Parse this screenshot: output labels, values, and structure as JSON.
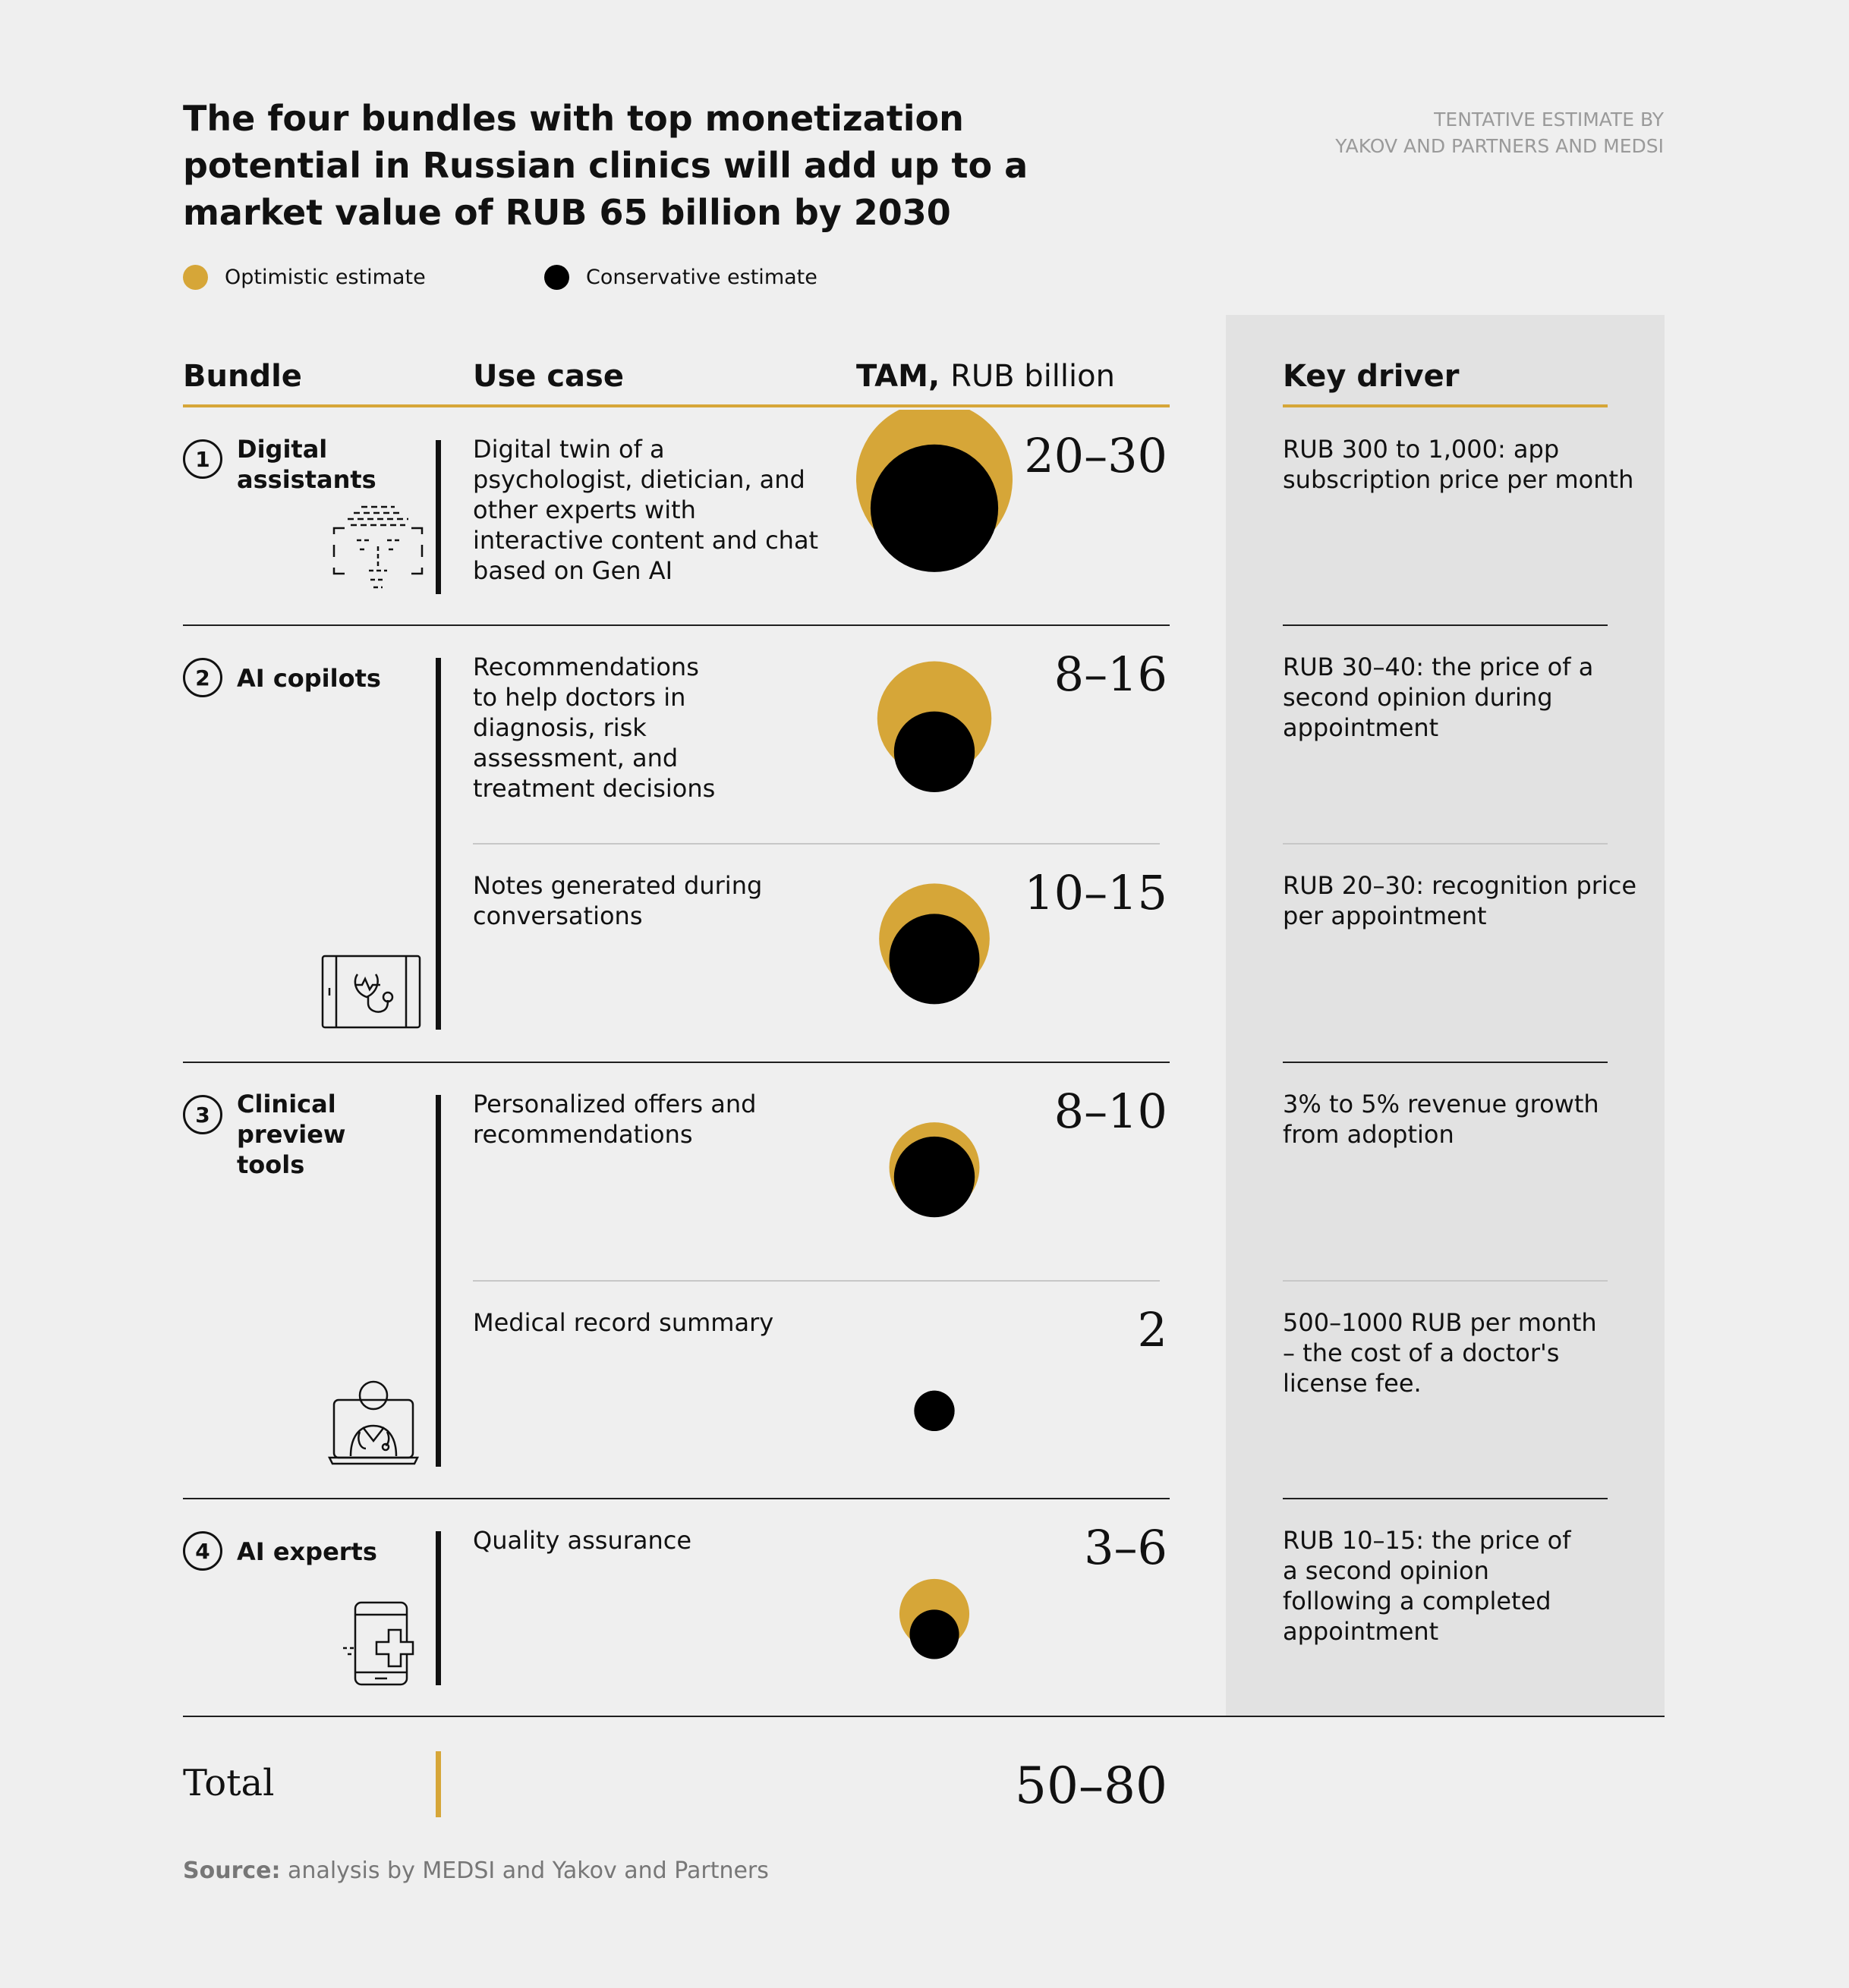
{
  "title": "The four bundles with top monetization potential in Russian clinics will add up to a market value of RUB 65 billion by 2030",
  "note_line1": "Tentative estimate by",
  "note_line2": "Yakov and Partners and MEDSI",
  "colors": {
    "optimistic": "#d6a638",
    "conservative": "#000000",
    "panel": "#e2e2e2",
    "background": "#efefef"
  },
  "legend": [
    {
      "label": "Optimistic estimate",
      "color": "#d6a638"
    },
    {
      "label": "Conservative estimate",
      "color": "#000000"
    }
  ],
  "headers": {
    "bundle": "Bundle",
    "use_case": "Use case",
    "tam_bold": "TAM,",
    "tam_light": "RUB billion",
    "key_driver": "Key driver"
  },
  "bundles": [
    {
      "number": "1",
      "name": "Digital assistants",
      "icon": "face-scan-icon"
    },
    {
      "number": "2",
      "name": "AI copilots",
      "icon": "tablet-stethoscope-icon"
    },
    {
      "number": "3",
      "name": "Clinical preview tools",
      "icon": "doctor-laptop-icon"
    },
    {
      "number": "4",
      "name": "AI experts",
      "icon": "phone-medical-cross-icon"
    }
  ],
  "chart_data": {
    "type": "table",
    "title": "The four bundles with top monetization potential in Russian clinics will add up to a market value of RUB 65 billion by 2030",
    "unit": "RUB billion",
    "series": [
      {
        "name": "Optimistic estimate",
        "values": [
          30,
          16,
          15,
          10,
          2,
          6
        ]
      },
      {
        "name": "Conservative estimate",
        "values": [
          20,
          8,
          10,
          8,
          2,
          3
        ]
      }
    ],
    "rows": [
      {
        "bundle": "Digital assistants",
        "use_case": "Digital twin of a psychologist, dietician, and other experts with interactive content and chat based on Gen AI",
        "tam_label": "20–30",
        "conservative": 20,
        "optimistic": 30,
        "key_driver": "RUB 300 to 1,000: app subscription price per month"
      },
      {
        "bundle": "AI copilots",
        "use_case": "Recommendations to help doctors in diagnosis, risk assessment, and treatment decisions",
        "tam_label": "8–16",
        "conservative": 8,
        "optimistic": 16,
        "key_driver": "RUB 30–40: the price of a second opinion during appointment"
      },
      {
        "bundle": "AI copilots",
        "use_case": "Notes generated during conversations",
        "tam_label": "10–15",
        "conservative": 10,
        "optimistic": 15,
        "key_driver": "RUB 20–30: recognition price per appointment"
      },
      {
        "bundle": "Clinical preview tools",
        "use_case": "Personalized offers and recommendations",
        "tam_label": "8–10",
        "conservative": 8,
        "optimistic": 10,
        "key_driver": "3% to 5% revenue growth from adoption"
      },
      {
        "bundle": "Clinical preview tools",
        "use_case": "Medical record summary",
        "tam_label": "2",
        "conservative": 2,
        "optimistic": 2,
        "key_driver": "500–1000 RUB per month – the cost of a doctor's license fee."
      },
      {
        "bundle": "AI experts",
        "use_case": "Quality assurance",
        "tam_label": "3–6",
        "conservative": 3,
        "optimistic": 6,
        "key_driver": "RUB 10–15: the price of a second opinion following a completed appointment"
      }
    ],
    "total": {
      "label": "Total",
      "value": "50–80"
    }
  },
  "source_label": "Source:",
  "source_text": "analysis by MEDSI and Yakov and Partners"
}
